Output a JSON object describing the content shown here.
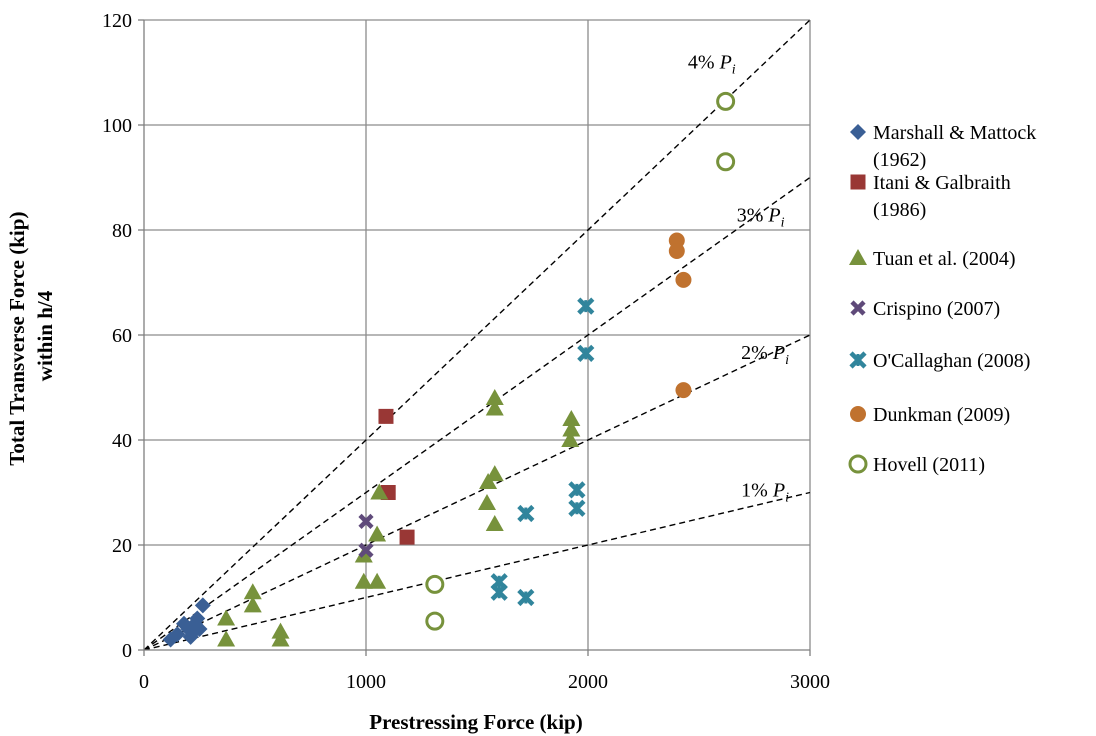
{
  "chart_data": {
    "type": "scatter",
    "xlabel": "Prestressing Force (kip)",
    "ylabel_lines": [
      "Total Transverse Force (kip)",
      "within h/4"
    ],
    "xlim": [
      0,
      3000
    ],
    "ylim": [
      0,
      120
    ],
    "xticks": [
      0,
      1000,
      2000,
      3000
    ],
    "yticks": [
      0,
      20,
      40,
      60,
      80,
      100,
      120
    ],
    "grid": true,
    "legend_position": "right",
    "reference_lines": [
      {
        "prefix": "4%",
        "symbol": "P",
        "sub": "i",
        "slope": 0.04
      },
      {
        "prefix": "3%",
        "symbol": "P",
        "sub": "i",
        "slope": 0.03
      },
      {
        "prefix": "2%",
        "symbol": "P",
        "sub": "i",
        "slope": 0.02
      },
      {
        "prefix": "1%",
        "symbol": "P",
        "sub": "i",
        "slope": 0.01
      }
    ],
    "series": [
      {
        "legend": [
          "Marshall & Mattock",
          "(1962)"
        ],
        "marker": "diamond",
        "color": "#3A5F95",
        "points": [
          [
            120,
            2
          ],
          [
            150,
            3
          ],
          [
            180,
            5
          ],
          [
            200,
            4
          ],
          [
            210,
            2.5
          ],
          [
            225,
            3.5
          ],
          [
            240,
            6
          ],
          [
            250,
            4
          ],
          [
            265,
            8.5
          ],
          [
            230,
            5
          ]
        ]
      },
      {
        "legend": [
          "Itani & Galbraith",
          "(1986)"
        ],
        "marker": "square",
        "color": "#993735",
        "points": [
          [
            1090,
            44.5
          ],
          [
            1100,
            30
          ],
          [
            1185,
            21.5
          ]
        ]
      },
      {
        "legend": [
          "Tuan et al. (2004)"
        ],
        "marker": "triangle",
        "color": "#77923C",
        "points": [
          [
            370,
            2
          ],
          [
            370,
            6
          ],
          [
            490,
            8.5
          ],
          [
            490,
            11
          ],
          [
            615,
            2
          ],
          [
            615,
            3.5
          ],
          [
            990,
            13
          ],
          [
            990,
            18
          ],
          [
            1050,
            13
          ],
          [
            1050,
            22
          ],
          [
            1060,
            30
          ],
          [
            1545,
            28
          ],
          [
            1550,
            32
          ],
          [
            1580,
            24
          ],
          [
            1580,
            33.5
          ],
          [
            1580,
            46
          ],
          [
            1580,
            48
          ],
          [
            1920,
            40
          ],
          [
            1925,
            42
          ],
          [
            1925,
            44
          ]
        ]
      },
      {
        "legend": [
          "Crispino (2007)"
        ],
        "marker": "x",
        "color": "#5F4A7A",
        "points": [
          [
            1000,
            19
          ],
          [
            1000,
            24.5
          ]
        ]
      },
      {
        "legend": [
          "O'Callaghan (2008)"
        ],
        "marker": "star",
        "color": "#31859C",
        "points": [
          [
            1600,
            13
          ],
          [
            1600,
            11
          ],
          [
            1720,
            10
          ],
          [
            1720,
            26
          ],
          [
            1950,
            27
          ],
          [
            1950,
            30.5
          ],
          [
            1990,
            56.5
          ],
          [
            1990,
            65.5
          ]
        ]
      },
      {
        "legend": [
          "Dunkman (2009)"
        ],
        "marker": "circle",
        "color": "#C0722F",
        "points": [
          [
            2400,
            78
          ],
          [
            2400,
            76
          ],
          [
            2430,
            70.5
          ],
          [
            2430,
            49.5
          ]
        ]
      },
      {
        "legend": [
          "Hovell (2011)"
        ],
        "marker": "ring",
        "color": "#77923C",
        "points": [
          [
            1310,
            12.5
          ],
          [
            1310,
            5.5
          ],
          [
            2620,
            104.5
          ],
          [
            2620,
            93
          ]
        ]
      }
    ]
  }
}
